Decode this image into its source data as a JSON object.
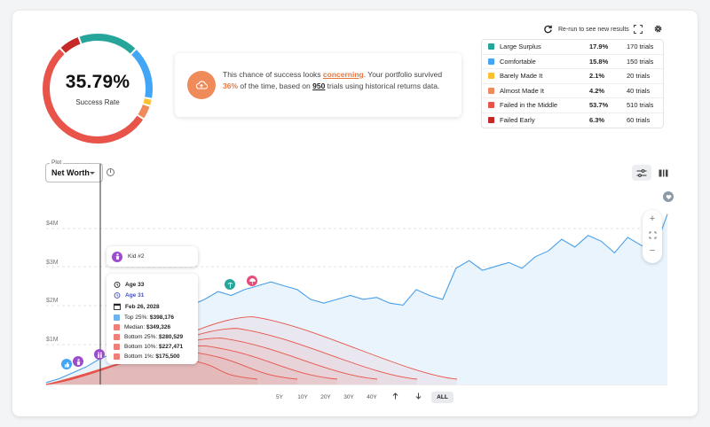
{
  "summary": {
    "success_rate": "35.79%",
    "success_label": "Success Rate"
  },
  "message": {
    "part1": "This chance of success looks ",
    "status_word": "concerning",
    "part2": ". Your portfolio survived ",
    "pct": "36%",
    "part3": " of the time, based on ",
    "trials": "950",
    "part4": " trials using historical returns data."
  },
  "toolbar": {
    "rerun_label": "Re-run to see new results"
  },
  "outcomes": [
    {
      "name": "Large Surplus",
      "pct": "17.9%",
      "trials": "170 trials",
      "color": "#26a69a",
      "share": 0.179
    },
    {
      "name": "Comfortable",
      "pct": "15.8%",
      "trials": "150 trials",
      "color": "#42a5f5",
      "share": 0.158
    },
    {
      "name": "Barely Made It",
      "pct": "2.1%",
      "trials": "20 trials",
      "color": "#fbc02d",
      "share": 0.021
    },
    {
      "name": "Almost Made It",
      "pct": "4.2%",
      "trials": "40 trials",
      "color": "#f08a5d",
      "share": 0.042
    },
    {
      "name": "Failed in the Middle",
      "pct": "53.7%",
      "trials": "510 trials",
      "color": "#e8534a",
      "share": 0.537
    },
    {
      "name": "Failed Early",
      "pct": "6.3%",
      "trials": "60 trials",
      "color": "#c62828",
      "share": 0.063
    }
  ],
  "plot": {
    "caption": "Plot",
    "selected": "Net Worth"
  },
  "chart_data": {
    "type": "area",
    "y_ticks": [
      "$1M",
      "$2M",
      "$3M",
      "$4M"
    ],
    "ylim_millions": [
      0,
      4.5
    ],
    "comfortable_path_millions": [
      0.05,
      0.15,
      0.3,
      0.45,
      0.65,
      0.8,
      1.0,
      1.1,
      1.4,
      1.6,
      1.8,
      2.05,
      2.2,
      2.4,
      2.3,
      2.45,
      2.55,
      2.65,
      2.55,
      2.45,
      2.2,
      2.1,
      2.2,
      2.3,
      2.2,
      2.25,
      2.1,
      2.05,
      2.45,
      2.3,
      2.2,
      3.0,
      3.2,
      2.95,
      3.05,
      3.15,
      3.0,
      3.3,
      3.45,
      3.75,
      3.55,
      3.85,
      3.7,
      3.4,
      3.8,
      3.6,
      3.45,
      4.4
    ],
    "failure_paths_peak_millions": [
      1.75,
      1.45,
      1.2,
      1.0,
      0.85,
      0.7
    ],
    "tooltip": {
      "kid_label": "Kid #2",
      "age_primary": "Age 33",
      "age_secondary": "Age 31",
      "date": "Feb 26, 2028",
      "percentiles": [
        {
          "label": "Top 25%",
          "value": "$398,176",
          "color": "#6fb3f0"
        },
        {
          "label": "Median",
          "value": "$349,326",
          "color": "#f07f7a"
        },
        {
          "label": "Bottom 25%",
          "value": "$280,529",
          "color": "#f07f7a"
        },
        {
          "label": "Bottom 10%",
          "value": "$227,471",
          "color": "#f07f7a"
        },
        {
          "label": "Bottom 1%",
          "value": "$175,500",
          "color": "#f07f7a"
        }
      ]
    }
  },
  "ranges": [
    "5Y",
    "10Y",
    "20Y",
    "30Y",
    "40Y",
    "ALL"
  ],
  "range_selected": "ALL",
  "zoom": {
    "in": "+",
    "out": "−"
  }
}
